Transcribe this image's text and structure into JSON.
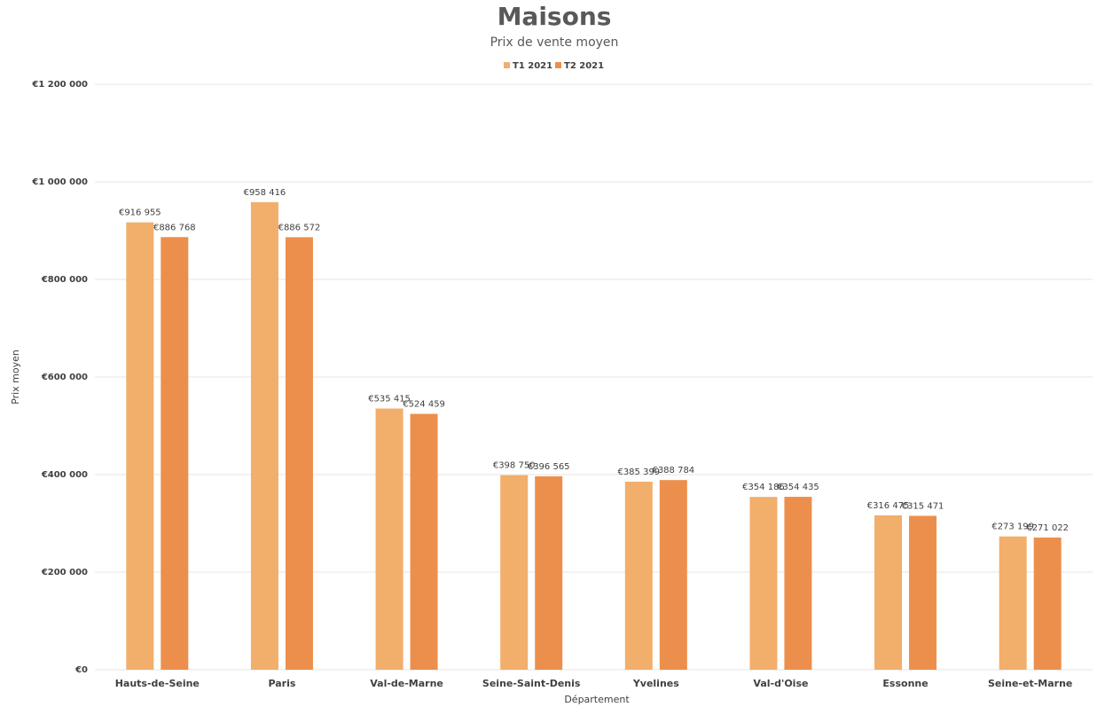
{
  "chart_data": {
    "type": "bar",
    "title": "Maisons",
    "subtitle": "Prix de vente moyen",
    "x_label": "Département",
    "y_label": "Prix moyen",
    "categories": [
      "Hauts-de-Seine",
      "Paris",
      "Val-de-Marne",
      "Seine-Saint-Denis",
      "Yvelines",
      "Val-d'Oise",
      "Essonne",
      "Seine-et-Marne"
    ],
    "series": [
      {
        "name": "T1 2021",
        "color": "#f2ae6b",
        "values": [
          916955,
          958416,
          535415,
          398750,
          385399,
          354186,
          316475,
          273199
        ],
        "value_labels": [
          "€916 955",
          "€958 416",
          "€535 415",
          "€398 750",
          "€385 399",
          "€354 186",
          "€316 475",
          "€273 199"
        ]
      },
      {
        "name": "T2 2021",
        "color": "#ed8f4c",
        "values": [
          886768,
          886572,
          524459,
          396565,
          388784,
          354435,
          315471,
          271022
        ],
        "value_labels": [
          "€886 768",
          "€886 572",
          "€524 459",
          "€396 565",
          "€388 784",
          "€354 435",
          "€315 471",
          "€271 022"
        ]
      }
    ],
    "ylim": [
      0,
      1200000
    ],
    "yticks": [
      {
        "value": 0,
        "label": "€0"
      },
      {
        "value": 200000,
        "label": "€200 000"
      },
      {
        "value": 400000,
        "label": "€400 000"
      },
      {
        "value": 600000,
        "label": "€600 000"
      },
      {
        "value": 800000,
        "label": "€800 000"
      },
      {
        "value": 1000000,
        "label": "€1 000 000"
      },
      {
        "value": 1200000,
        "label": "€1 200 000"
      }
    ],
    "grid": true,
    "legend": "top"
  }
}
